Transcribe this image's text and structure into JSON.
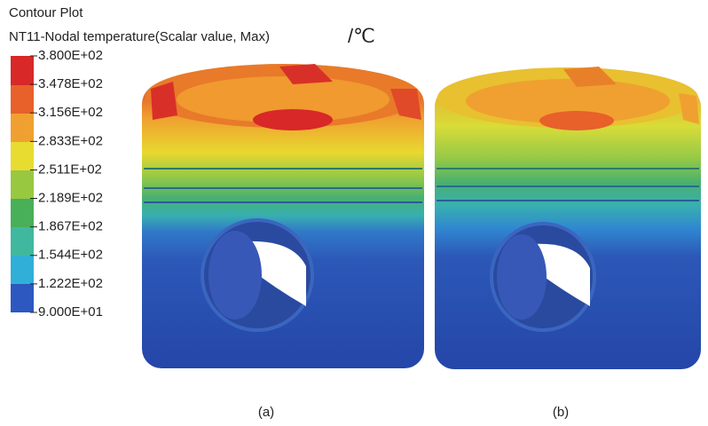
{
  "header": {
    "title": "Contour Plot",
    "subtitle": "NT11-Nodal temperature(Scalar value, Max)",
    "unit": "/℃"
  },
  "legend": {
    "levels": [
      "3.800E+02",
      "3.478E+02",
      "3.156E+02",
      "2.833E+02",
      "2.511E+02",
      "2.189E+02",
      "1.867E+02",
      "1.544E+02",
      "1.222E+02",
      "9.000E+01"
    ]
  },
  "panels": [
    {
      "label": "(a)"
    },
    {
      "label": "(b)"
    }
  ]
}
